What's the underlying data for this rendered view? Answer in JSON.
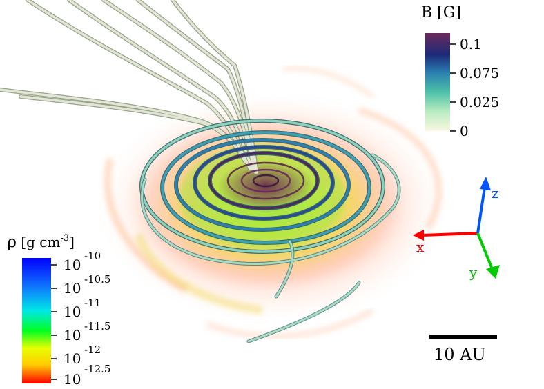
{
  "b_colorbar": {
    "label": "B [G]",
    "ticks": [
      "0.1",
      "0.075",
      "0.025",
      "0"
    ],
    "colors": [
      "#f7f3d8",
      "#8fe0b0",
      "#2a9aa8",
      "#1d3b8a",
      "#2a0f3a",
      "#6a2a5a"
    ]
  },
  "rho_colorbar": {
    "label_symbol": "ρ",
    "label_units": "[g cm",
    "label_exp": "-3",
    "label_close": "]",
    "ticks": [
      {
        "base": "10",
        "exp": "-10"
      },
      {
        "base": "10",
        "exp": "-10.5"
      },
      {
        "base": "10",
        "exp": "-11"
      },
      {
        "base": "10",
        "exp": "-11.5"
      },
      {
        "base": "10",
        "exp": "-12"
      },
      {
        "base": "10",
        "exp": "-12.5"
      },
      {
        "base": "10",
        "exp": ""
      }
    ],
    "colors": [
      "#0000ff",
      "#0a6cff",
      "#00e5e5",
      "#00ff00",
      "#d9ff00",
      "#ffd000",
      "#ff0000"
    ]
  },
  "axes": {
    "x_label": "x",
    "y_label": "y",
    "z_label": "z",
    "x_color": "#ff0000",
    "y_color": "#00cc00",
    "z_color": "#0055ff"
  },
  "scale_bar": {
    "label": "10 AU"
  }
}
